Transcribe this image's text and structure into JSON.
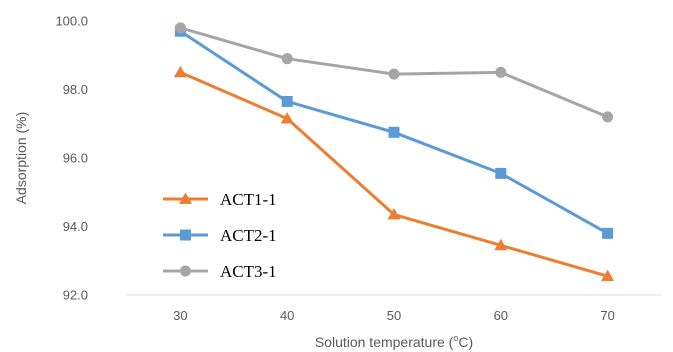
{
  "chart_data": {
    "type": "line",
    "title": "",
    "xlabel": "Solution temperature (°C)",
    "xlabel_parts": [
      "Solution temperature (",
      "o",
      "C)"
    ],
    "ylabel": "Adsorption (%)",
    "x": [
      30,
      40,
      50,
      60,
      70
    ],
    "x_tick_labels": [
      "30",
      "40",
      "50",
      "60",
      "70"
    ],
    "y_tick_labels": [
      "92.0",
      "94.0",
      "96.0",
      "98.0",
      "100.0"
    ],
    "y_ticks": [
      92,
      94,
      96,
      98,
      100
    ],
    "ylim": [
      92,
      100
    ],
    "grid": false,
    "legend_position": "left",
    "series": [
      {
        "name": "ACT1-1",
        "marker": "triangle",
        "color": "#ED7D31",
        "values": [
          98.5,
          97.15,
          94.35,
          93.45,
          92.55
        ]
      },
      {
        "name": "ACT2-1",
        "marker": "square",
        "color": "#5B9BD5",
        "values": [
          99.7,
          97.65,
          96.75,
          95.55,
          93.8
        ]
      },
      {
        "name": "ACT3-1",
        "marker": "circle",
        "color": "#A5A5A5",
        "values": [
          99.8,
          98.9,
          98.45,
          98.5,
          97.2
        ]
      }
    ]
  }
}
